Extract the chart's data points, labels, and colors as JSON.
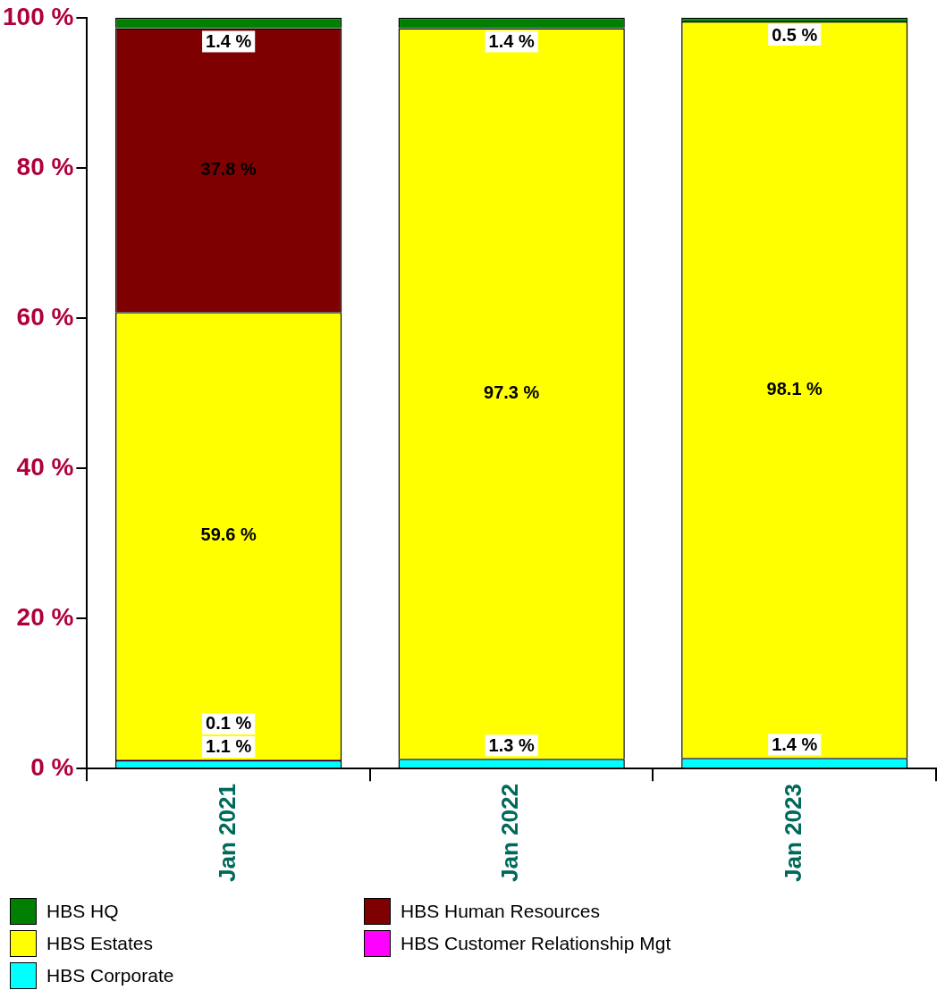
{
  "chart_data": {
    "type": "bar",
    "stacked": true,
    "categories": [
      "Jan 2021",
      "Jan 2022",
      "Jan 2023"
    ],
    "series": [
      {
        "name": "HBS Corporate",
        "color": "#00ffff",
        "values": [
          1.1,
          1.3,
          1.4
        ],
        "value_labels": [
          "1.1 %",
          "1.3 %",
          "1.4 %"
        ]
      },
      {
        "name": "HBS Customer Relationship Mgt",
        "color": "#ff00ff",
        "values": [
          0.1,
          null,
          null
        ],
        "value_labels": [
          "0.1 %",
          null,
          null
        ]
      },
      {
        "name": "HBS Estates",
        "color": "#ffff00",
        "values": [
          59.6,
          97.3,
          98.1
        ],
        "value_labels": [
          "59.6 %",
          "97.3 %",
          "98.1 %"
        ]
      },
      {
        "name": "HBS Human Resources",
        "color": "#7f0000",
        "values": [
          37.8,
          null,
          null
        ],
        "value_labels": [
          "37.8 %",
          null,
          null
        ]
      },
      {
        "name": "HBS HQ",
        "color": "#007f00",
        "values": [
          1.4,
          1.4,
          0.5
        ],
        "value_labels": [
          "1.4 %",
          "1.4 %",
          "0.5 %"
        ]
      }
    ],
    "ylim": [
      0,
      100
    ],
    "yticks": [
      {
        "value": 0,
        "label": "0 %"
      },
      {
        "value": 20,
        "label": "20 %"
      },
      {
        "value": 40,
        "label": "40 %"
      },
      {
        "value": 60,
        "label": "60 %"
      },
      {
        "value": 80,
        "label": "80 %"
      },
      {
        "value": 100,
        "label": "100 %"
      }
    ],
    "grid": false,
    "legend": "bottom"
  }
}
